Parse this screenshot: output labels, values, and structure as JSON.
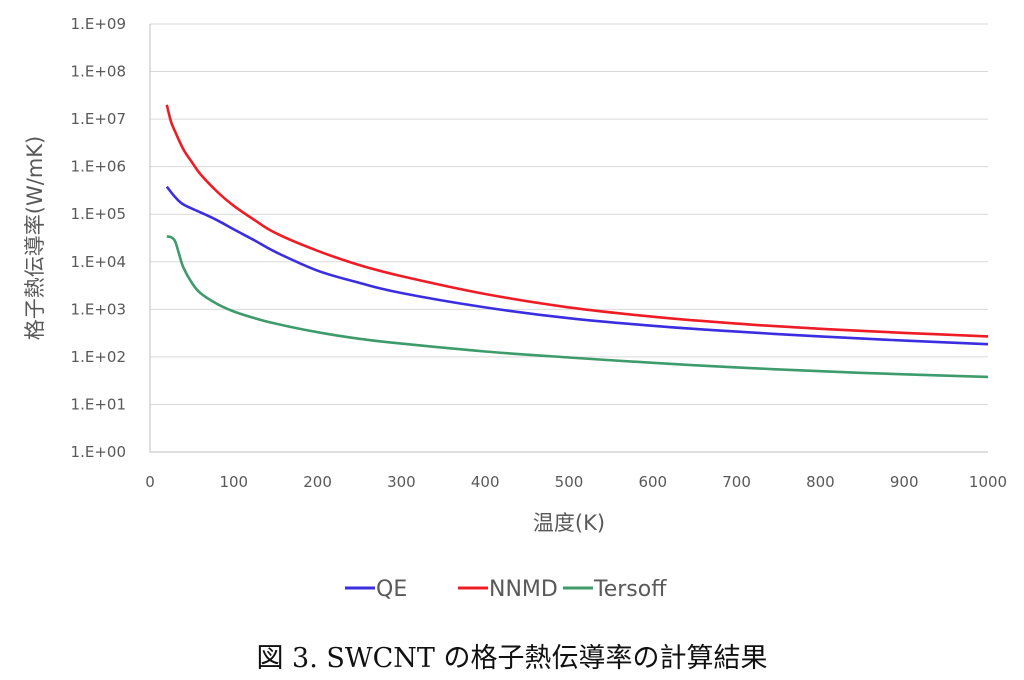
{
  "chart_data": {
    "type": "line",
    "title": "",
    "xlabel": "温度(K)",
    "ylabel": "格子熱伝導率(W/mK)",
    "xlim": [
      0,
      1000
    ],
    "x_ticks": [
      "0",
      "100",
      "200",
      "300",
      "400",
      "500",
      "600",
      "700",
      "800",
      "900",
      "1000"
    ],
    "y_scale": "log",
    "ylim": [
      1,
      1000000000
    ],
    "y_ticks": [
      "1.E+00",
      "1.E+01",
      "1.E+02",
      "1.E+03",
      "1.E+04",
      "1.E+05",
      "1.E+06",
      "1.E+07",
      "1.E+08",
      "1.E+09"
    ],
    "grid": "horizontal",
    "legend_position": "bottom",
    "series": [
      {
        "name": "QE",
        "color": "#3b2de0",
        "x": [
          20,
          30,
          40,
          60,
          80,
          100,
          125,
          150,
          200,
          250,
          300,
          400,
          500,
          600,
          700,
          800,
          900,
          1000
        ],
        "y": [
          380000,
          230000,
          160000,
          110000,
          75000,
          48000,
          28000,
          16000,
          6500,
          3600,
          2200,
          1100,
          650,
          450,
          340,
          270,
          220,
          185
        ]
      },
      {
        "name": "NNMD",
        "color": "#ee1c25",
        "x": [
          20,
          25,
          30,
          40,
          50,
          60,
          80,
          100,
          125,
          150,
          200,
          250,
          300,
          400,
          500,
          600,
          700,
          800,
          900,
          1000
        ],
        "y": [
          20000000,
          9000000,
          5500000,
          2300000,
          1250000,
          700000,
          300000,
          150000,
          75000,
          40000,
          17000,
          8500,
          5000,
          2100,
          1100,
          700,
          500,
          390,
          320,
          270
        ]
      },
      {
        "name": "Tersoff",
        "color": "#3e9b6b",
        "x": [
          20,
          25,
          30,
          35,
          40,
          50,
          60,
          80,
          100,
          125,
          150,
          200,
          250,
          300,
          400,
          500,
          600,
          700,
          800,
          900,
          1000
        ],
        "y": [
          34000,
          33000,
          27000,
          14000,
          7500,
          3600,
          2200,
          1300,
          900,
          650,
          500,
          330,
          240,
          190,
          130,
          97,
          75,
          60,
          50,
          43,
          38
        ]
      }
    ]
  },
  "caption": "図 3. SWCNT の格子熱伝導率の計算結果"
}
